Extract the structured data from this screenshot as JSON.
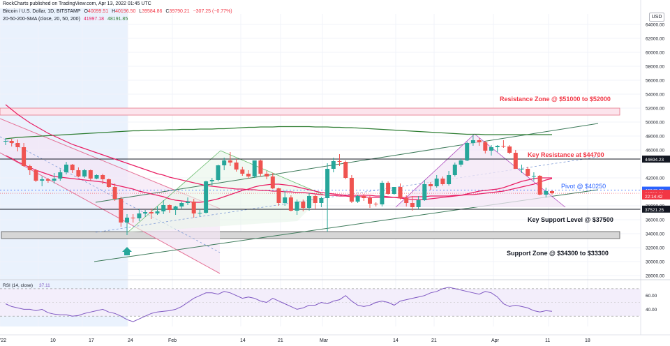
{
  "header": {
    "publisher": "RockCharts published on TradingView.com, Apr 13, 2022 01:45 UTC",
    "symbol": "Bitcoin / U.S. Dollar, 1D, BITSTAMP",
    "o_label": "O",
    "o_value": "40099.51",
    "h_label": "H",
    "h_value": "40196.50",
    "l_label": "L",
    "l_value": "39584.86",
    "c_label": "C",
    "c_value": "39790.21",
    "change": "−307.25 (−0.77%)",
    "sma_label": "20-50-200-SMA (close, 20, 50, 200)",
    "sma_values": [
      "41997.18",
      "48191.85"
    ]
  },
  "currency": "USD",
  "price_scale": {
    "ticks": [
      "64000.00",
      "62000.00",
      "60000.00",
      "58000.00",
      "56000.00",
      "54000.00",
      "52000.00",
      "50000.00",
      "48000.00",
      "46000.00",
      "42000.00",
      "38000.00",
      "36000.00",
      "34000.00",
      "32000.00",
      "30000.00",
      "28000.00"
    ],
    "tick_values": [
      64000,
      62000,
      60000,
      58000,
      56000,
      54000,
      52000,
      50000,
      48000,
      46000,
      42000,
      38000,
      36000,
      34000,
      32000,
      30000,
      28000
    ],
    "labels": [
      {
        "text": "44694.23",
        "value": 44694.23,
        "bg": "#131722",
        "color": "#ffffff"
      },
      {
        "text": "40242.35",
        "value": 40242.35,
        "bg": "#2962ff",
        "color": "#ffffff"
      },
      {
        "text": "39790.21",
        "value": 39790.21,
        "bg": "#f23645",
        "color": "#ffffff"
      },
      {
        "text": "22:14:42",
        "value": 39400,
        "bg": "#f23645",
        "color": "#ffffff"
      },
      {
        "text": "37521.25",
        "value": 37521.25,
        "bg": "#131722",
        "color": "#ffffff"
      }
    ]
  },
  "rsi": {
    "label": "RSI (14, close)",
    "value": "37.11",
    "ticks": [
      "60.00",
      "40.00"
    ],
    "tick_values": [
      60,
      40
    ],
    "upper": 70,
    "lower": 30,
    "values": [
      48,
      44,
      42,
      40,
      40,
      38,
      40,
      35,
      33,
      32,
      32,
      30,
      31,
      34,
      36,
      38,
      40,
      36,
      34,
      30,
      25,
      22,
      26,
      30,
      34,
      36,
      37,
      38,
      40,
      44,
      50,
      56,
      60,
      64,
      64,
      62,
      66,
      64,
      60,
      56,
      58,
      56,
      52,
      50,
      56,
      52,
      48,
      44,
      40,
      42,
      46,
      46,
      50,
      48,
      52,
      54,
      60,
      52,
      46,
      44,
      46,
      50,
      52,
      50,
      46,
      52,
      54,
      56,
      58,
      60,
      64,
      66,
      70,
      72,
      70,
      68,
      66,
      64,
      62,
      66,
      64,
      58,
      48,
      44,
      46,
      44,
      42,
      38,
      36,
      38,
      37
    ]
  },
  "annotations": {
    "resistance_zone": "Resistance Zone @ $51000 to $52000",
    "key_resistance": "Key Resistance at $44700",
    "pivot": "Pivot @ $40250",
    "key_support": "Key Support Level @ $37500",
    "support_zone": "Support Zone @ $34300 to $33300"
  },
  "x_axis": {
    "labels": [
      "'22",
      "10",
      "17",
      "24",
      "Feb",
      "14",
      "21",
      "Mar",
      "14",
      "21",
      "Apr",
      "11",
      "18"
    ]
  },
  "chart_data": {
    "type": "candlestick",
    "title": "Bitcoin / U.S. Dollar, 1D, BITSTAMP",
    "ylim": [
      27500,
      65500
    ],
    "candles": [
      [
        47300,
        47700,
        46700,
        47300
      ],
      [
        47300,
        47600,
        46500,
        47000
      ],
      [
        47000,
        47500,
        45800,
        46400
      ],
      [
        46400,
        47000,
        43600,
        43700
      ],
      [
        43700,
        43900,
        42400,
        43100
      ],
      [
        43100,
        43300,
        41400,
        41600
      ],
      [
        41600,
        42200,
        40800,
        41800
      ],
      [
        41800,
        42000,
        41300,
        41600
      ],
      [
        41600,
        42700,
        41200,
        41900
      ],
      [
        41900,
        43200,
        41600,
        42800
      ],
      [
        42800,
        44300,
        42500,
        43900
      ],
      [
        43900,
        44000,
        42700,
        43100
      ],
      [
        43100,
        43500,
        42100,
        42200
      ],
      [
        42200,
        43300,
        42000,
        43100
      ],
      [
        43100,
        43200,
        41600,
        41900
      ],
      [
        41900,
        42500,
        41800,
        42400
      ],
      [
        42400,
        42600,
        41100,
        41800
      ],
      [
        41800,
        41900,
        40600,
        40700
      ],
      [
        40700,
        41200,
        38700,
        39000
      ],
      [
        39000,
        39300,
        35000,
        35600
      ],
      [
        35600,
        36800,
        33800,
        36300
      ],
      [
        36300,
        36800,
        35600,
        36200
      ],
      [
        36200,
        37600,
        35800,
        36900
      ],
      [
        36900,
        37400,
        36400,
        37100
      ],
      [
        37100,
        37600,
        36100,
        36900
      ],
      [
        36900,
        37900,
        36700,
        37200
      ],
      [
        37200,
        38800,
        36800,
        38100
      ],
      [
        38100,
        38200,
        37000,
        37400
      ],
      [
        37400,
        38000,
        36700,
        37900
      ],
      [
        37900,
        38600,
        37600,
        38400
      ],
      [
        38400,
        39200,
        38100,
        38600
      ],
      [
        38600,
        39000,
        36300,
        36900
      ],
      [
        36900,
        37500,
        36500,
        37000
      ],
      [
        37000,
        41600,
        36900,
        41500
      ],
      [
        41500,
        42000,
        40900,
        41700
      ],
      [
        41700,
        43900,
        41500,
        43800
      ],
      [
        43800,
        44900,
        43100,
        44500
      ],
      [
        44500,
        45700,
        43700,
        44200
      ],
      [
        44200,
        44700,
        42900,
        43200
      ],
      [
        43200,
        43600,
        42300,
        42600
      ],
      [
        42600,
        43100,
        41900,
        42200
      ],
      [
        42200,
        44500,
        42000,
        44500
      ],
      [
        44500,
        44600,
        42200,
        42600
      ],
      [
        42600,
        43000,
        41800,
        42200
      ],
      [
        42200,
        42700,
        40400,
        40500
      ],
      [
        40500,
        40600,
        38000,
        38400
      ],
      [
        38400,
        40200,
        38000,
        39200
      ],
      [
        39200,
        39500,
        37200,
        37300
      ],
      [
        37300,
        38900,
        36700,
        38600
      ],
      [
        38600,
        38900,
        37200,
        37700
      ],
      [
        37700,
        39800,
        37300,
        39400
      ],
      [
        39400,
        39600,
        37500,
        38400
      ],
      [
        38400,
        39300,
        37800,
        39100
      ],
      [
        39100,
        44100,
        34300,
        43300
      ],
      [
        43300,
        44900,
        42800,
        44400
      ],
      [
        44400,
        45400,
        43700,
        44300
      ],
      [
        44300,
        44500,
        41800,
        42000
      ],
      [
        42000,
        42400,
        38400,
        38600
      ],
      [
        38600,
        39600,
        38400,
        39400
      ],
      [
        39400,
        39700,
        38700,
        39100
      ],
      [
        39100,
        39500,
        37700,
        38300
      ],
      [
        38300,
        38500,
        37900,
        38200
      ],
      [
        38200,
        41600,
        37900,
        41300
      ],
      [
        41300,
        41500,
        39600,
        39700
      ],
      [
        39700,
        40700,
        39600,
        40700
      ],
      [
        40700,
        41200,
        38900,
        39100
      ],
      [
        39100,
        39500,
        37900,
        38400
      ],
      [
        38400,
        39400,
        37300,
        37800
      ],
      [
        37800,
        39400,
        37500,
        38800
      ],
      [
        38800,
        41700,
        38700,
        41100
      ],
      [
        41100,
        41400,
        40300,
        40800
      ],
      [
        40800,
        42400,
        40600,
        41900
      ],
      [
        41900,
        42200,
        40900,
        41100
      ],
      [
        41100,
        43000,
        40900,
        42400
      ],
      [
        42400,
        44200,
        42200,
        43900
      ],
      [
        43900,
        44800,
        43600,
        44500
      ],
      [
        44500,
        47200,
        44400,
        47000
      ],
      [
        47000,
        48100,
        46600,
        47400
      ],
      [
        47400,
        47700,
        46600,
        47100
      ],
      [
        47100,
        47300,
        45500,
        45900
      ],
      [
        45900,
        46700,
        45200,
        46400
      ],
      [
        46400,
        46700,
        45700,
        46600
      ],
      [
        46600,
        47400,
        46300,
        46500
      ],
      [
        46500,
        46700,
        45400,
        45600
      ],
      [
        45600,
        46000,
        43300,
        43300
      ],
      [
        43300,
        43900,
        42700,
        43300
      ],
      [
        43300,
        43600,
        42200,
        42300
      ],
      [
        42300,
        42800,
        41600,
        42300
      ],
      [
        42300,
        42400,
        39500,
        39600
      ],
      [
        39600,
        40600,
        39200,
        40100
      ],
      [
        40100,
        40200,
        39600,
        39800
      ]
    ],
    "sma20": [
      45200,
      44800,
      44300,
      43900,
      43500,
      43100,
      42800,
      42500,
      42200,
      42100,
      42000,
      41900,
      41800,
      41700,
      41600,
      41500,
      41400,
      41200,
      41000,
      40800,
      40600,
      40400,
      40100,
      39900,
      39700,
      39500,
      39300,
      39000,
      38800,
      38700,
      38600,
      38500,
      38500,
      38600,
      38800,
      39000,
      39300,
      39600,
      39900,
      40200,
      40400,
      40700,
      40900,
      41000,
      41100,
      41100,
      41000,
      40900,
      40700,
      40500,
      40300,
      40100,
      39900,
      39800,
      39700,
      39600,
      39500,
      39500,
      39500,
      39500,
      39500,
      39400,
      39400,
      39300,
      39200,
      39100,
      39000,
      38900,
      38900,
      38900,
      39000,
      39100,
      39200,
      39300,
      39400,
      39500,
      39700,
      39900,
      40100,
      40200,
      40300,
      40400,
      40600,
      40900,
      41200,
      41500,
      41700,
      41900,
      42000,
      42000,
      42000
    ],
    "sma50": [
      52500,
      51800,
      51100,
      50500,
      49900,
      49400,
      48900,
      48400,
      48000,
      47600,
      47200,
      46800,
      46500,
      46200,
      45900,
      45600,
      45300,
      45000,
      44700,
      44400,
      44100,
      43800,
      43500,
      43200,
      42900,
      42600,
      42400,
      42100,
      41900,
      41700,
      41500,
      41300,
      41100,
      40900,
      40800,
      40700,
      40600,
      40500,
      40400,
      40400,
      40300,
      40300,
      40200,
      40200,
      40100,
      40100,
      40000,
      40000,
      39900,
      39900,
      39800,
      39700,
      39600,
      39500,
      39500,
      39400,
      39400,
      39300,
      39300,
      39300,
      39200,
      39200,
      39200,
      39200,
      39200,
      39200,
      39200,
      39300,
      39300,
      39300,
      39400,
      39400,
      39400,
      39400,
      39500,
      39500,
      39600,
      39600,
      39700,
      39800,
      39900,
      40000,
      40100,
      40300,
      40500,
      40700,
      40900,
      41100,
      41400,
      41700,
      41900
    ],
    "sma200": [
      47600,
      47700,
      47800,
      47850,
      47900,
      47950,
      48000,
      48050,
      48100,
      48150,
      48200,
      48250,
      48300,
      48350,
      48400,
      48450,
      48500,
      48550,
      48600,
      48650,
      48700,
      48750,
      48750,
      48800,
      48800,
      48850,
      48850,
      48900,
      48900,
      48950,
      48950,
      48950,
      49000,
      49000,
      49000,
      49050,
      49050,
      49100,
      49150,
      49200,
      49250,
      49250,
      49300,
      49300,
      49300,
      49350,
      49350,
      49350,
      49350,
      49350,
      49350,
      49300,
      49300,
      49300,
      49250,
      49250,
      49200,
      49200,
      49150,
      49100,
      49050,
      49000,
      48950,
      48900,
      48850,
      48800,
      48750,
      48700,
      48650,
      48600,
      48550,
      48500,
      48450,
      48400,
      48350,
      48300,
      48250,
      48250,
      48250,
      48200,
      48200,
      48200,
      48200,
      48200,
      48200,
      48200,
      48200,
      48200,
      48200,
      48200,
      48200
    ],
    "resistance_zone": [
      51000,
      52000
    ],
    "key_resistance": 44700,
    "pivot": 40250,
    "key_support": 37500,
    "support_zone": [
      33300,
      34300
    ]
  }
}
